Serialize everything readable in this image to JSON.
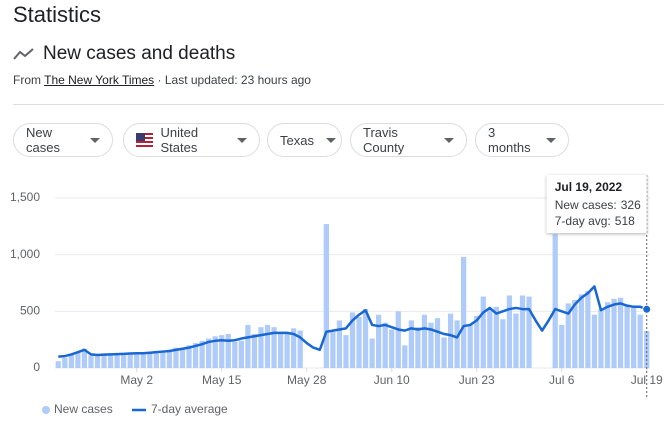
{
  "header": {
    "title": "Statistics",
    "subtitle": "New cases and deaths",
    "source_prefix": "From",
    "source": "The New York Times",
    "updated": "· Last updated: 23 hours ago"
  },
  "filters": [
    "New cases",
    "United States",
    "Texas",
    "Travis County",
    "3 months"
  ],
  "tooltip": {
    "title": "Jul 19, 2022",
    "labels": [
      "New cases:",
      "7-day avg:"
    ]
  },
  "chart_data": {
    "type": "combo",
    "x": [
      "2022-04-20",
      "2022-04-21",
      "2022-04-22",
      "2022-04-23",
      "2022-04-24",
      "2022-04-25",
      "2022-04-26",
      "2022-04-27",
      "2022-04-28",
      "2022-04-29",
      "2022-04-30",
      "2022-05-01",
      "2022-05-02",
      "2022-05-03",
      "2022-05-04",
      "2022-05-05",
      "2022-05-06",
      "2022-05-07",
      "2022-05-08",
      "2022-05-09",
      "2022-05-10",
      "2022-05-11",
      "2022-05-12",
      "2022-05-13",
      "2022-05-14",
      "2022-05-15",
      "2022-05-16",
      "2022-05-17",
      "2022-05-18",
      "2022-05-19",
      "2022-05-20",
      "2022-05-21",
      "2022-05-22",
      "2022-05-23",
      "2022-05-24",
      "2022-05-25",
      "2022-05-26",
      "2022-05-27",
      "2022-05-28",
      "2022-05-29",
      "2022-05-30",
      "2022-05-31",
      "2022-06-01",
      "2022-06-02",
      "2022-06-03",
      "2022-06-04",
      "2022-06-05",
      "2022-06-06",
      "2022-06-07",
      "2022-06-08",
      "2022-06-09",
      "2022-06-10",
      "2022-06-11",
      "2022-06-12",
      "2022-06-13",
      "2022-06-14",
      "2022-06-15",
      "2022-06-16",
      "2022-06-17",
      "2022-06-18",
      "2022-06-19",
      "2022-06-20",
      "2022-06-21",
      "2022-06-22",
      "2022-06-23",
      "2022-06-24",
      "2022-06-25",
      "2022-06-26",
      "2022-06-27",
      "2022-06-28",
      "2022-06-29",
      "2022-06-30",
      "2022-07-01",
      "2022-07-02",
      "2022-07-03",
      "2022-07-04",
      "2022-07-05",
      "2022-07-06",
      "2022-07-07",
      "2022-07-08",
      "2022-07-09",
      "2022-07-10",
      "2022-07-11",
      "2022-07-12",
      "2022-07-13",
      "2022-07-14",
      "2022-07-15",
      "2022-07-16",
      "2022-07-17",
      "2022-07-18",
      "2022-07-19"
    ],
    "series": [
      {
        "name": "New cases",
        "type": "bar",
        "color": "#aecbfa",
        "values": [
          60,
          90,
          120,
          140,
          170,
          110,
          110,
          120,
          120,
          130,
          130,
          130,
          125,
          120,
          130,
          145,
          150,
          160,
          180,
          175,
          200,
          220,
          240,
          260,
          280,
          290,
          300,
          230,
          240,
          380,
          300,
          360,
          380,
          360,
          310,
          300,
          350,
          330,
          null,
          null,
          null,
          1270,
          320,
          420,
          290,
          490,
          450,
          520,
          260,
          470,
          400,
          340,
          500,
          200,
          420,
          360,
          470,
          400,
          440,
          270,
          480,
          420,
          980,
          380,
          460,
          630,
          520,
          540,
          430,
          640,
          480,
          640,
          630,
          null,
          null,
          null,
          1180,
          380,
          570,
          600,
          650,
          680,
          470,
          520,
          580,
          610,
          620,
          560,
          550,
          470,
          326
        ]
      },
      {
        "name": "7-day average",
        "type": "line",
        "color": "#1967d2",
        "values": [
          100,
          105,
          120,
          140,
          160,
          120,
          115,
          118,
          120,
          122,
          125,
          128,
          130,
          130,
          135,
          140,
          145,
          150,
          160,
          170,
          180,
          195,
          210,
          230,
          240,
          245,
          240,
          245,
          260,
          270,
          280,
          290,
          300,
          310,
          310,
          310,
          300,
          270,
          220,
          180,
          160,
          320,
          330,
          340,
          350,
          420,
          470,
          510,
          380,
          370,
          380,
          360,
          340,
          330,
          350,
          340,
          350,
          340,
          320,
          300,
          290,
          270,
          370,
          380,
          420,
          490,
          530,
          480,
          500,
          520,
          530,
          520,
          520,
          420,
          330,
          420,
          520,
          500,
          480,
          560,
          620,
          660,
          720,
          510,
          540,
          560,
          570,
          550,
          540,
          540,
          518
        ]
      }
    ],
    "ylim": [
      0,
      1500
    ],
    "yticks": [
      0,
      500,
      {
        "value": 1000,
        "label": "1,000"
      },
      {
        "value": 1500,
        "label": "1,500"
      }
    ],
    "xticks": [
      {
        "value": "2022-05-02",
        "label": "May 2"
      },
      {
        "value": "2022-05-15",
        "label": "May 15"
      },
      {
        "value": "2022-05-28",
        "label": "May 28"
      },
      {
        "value": "2022-06-10",
        "label": "Jun 10"
      },
      {
        "value": "2022-06-23",
        "label": "Jun 23"
      },
      {
        "value": "2022-07-06",
        "label": "Jul 6"
      },
      {
        "value": "2022-07-19",
        "label": "Jul 19"
      }
    ],
    "grid": true
  }
}
